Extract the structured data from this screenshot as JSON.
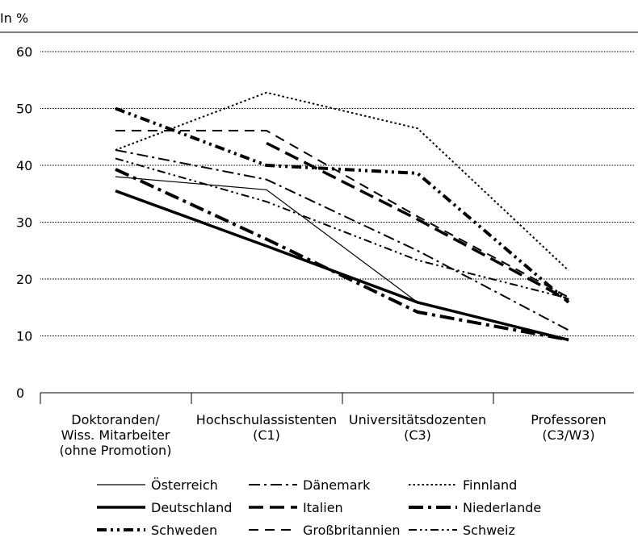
{
  "chart_data": {
    "type": "line",
    "title": "",
    "ylabel": "In %",
    "xlabel": "",
    "ylim": [
      0,
      60
    ],
    "yticks": [
      0,
      10,
      20,
      30,
      40,
      50,
      60
    ],
    "grid": true,
    "legend_position": "bottom",
    "categories": [
      [
        "Doktoranden/",
        "Wiss. Mitarbeiter",
        "(ohne Promotion)"
      ],
      [
        "Hochschulassistenten",
        "(C1)"
      ],
      [
        "Universitätsdozenten",
        "(C3)"
      ],
      [
        "Professoren",
        "(C3/W3)"
      ]
    ],
    "series": [
      {
        "name": "Österreich",
        "values": [
          38.0,
          35.7,
          15.9,
          9.3
        ],
        "style": "thin-solid"
      },
      {
        "name": "Dänemark",
        "values": [
          42.7,
          37.5,
          25.0,
          11.0
        ],
        "style": "dash-dot"
      },
      {
        "name": "Finnland",
        "values": [
          42.7,
          52.8,
          46.5,
          21.5
        ],
        "style": "dotted"
      },
      {
        "name": "Deutschland",
        "values": [
          35.5,
          25.8,
          15.9,
          9.3
        ],
        "style": "thick-solid"
      },
      {
        "name": "Italien",
        "values": [
          null,
          43.9,
          30.5,
          16.3
        ],
        "style": "long-dash"
      },
      {
        "name": "Niederlande",
        "values": [
          39.3,
          27.0,
          14.2,
          9.3
        ],
        "style": "long-dash-dot"
      },
      {
        "name": "Schweden",
        "values": [
          50.0,
          40.0,
          38.6,
          15.9
        ],
        "style": "thick-dash-dot-dot"
      },
      {
        "name": "Großbritannien",
        "values": [
          46.1,
          46.1,
          31.0,
          16.8
        ],
        "style": "dashed"
      },
      {
        "name": "Schweiz",
        "values": [
          41.2,
          33.6,
          23.3,
          16.6
        ],
        "style": "dash-dot-dot"
      }
    ]
  }
}
